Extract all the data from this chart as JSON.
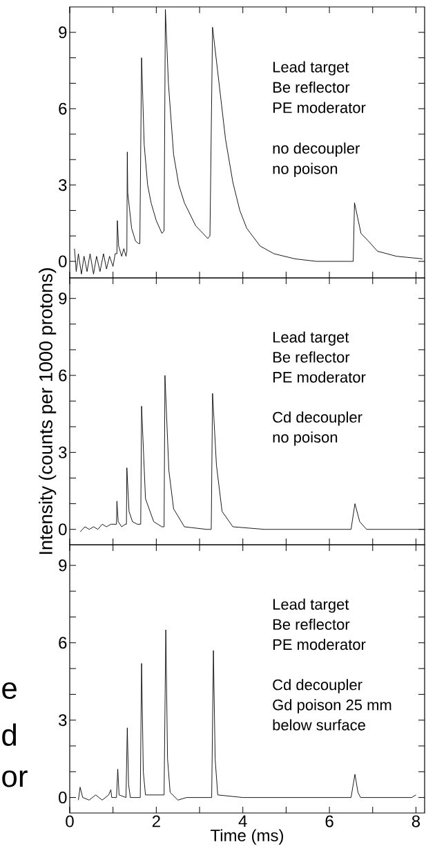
{
  "chart_data": [
    {
      "type": "line",
      "color": "#000000",
      "xlim": [
        0,
        8.2
      ],
      "ylim": [
        -0.65,
        10
      ],
      "tick_labels": "y",
      "xticks": [
        0,
        {
          "value": 1,
          "label": null
        },
        2,
        {
          "value": 3,
          "label": null
        },
        4,
        {
          "value": 5,
          "label": null
        },
        6,
        {
          "value": 7,
          "label": null
        },
        8
      ],
      "yticks": [
        0,
        {
          "value": 1,
          "label": null
        },
        {
          "value": 2,
          "label": null
        },
        3,
        {
          "value": 4,
          "label": null
        },
        {
          "value": 5,
          "label": null
        },
        6,
        {
          "value": 7,
          "label": null
        },
        {
          "value": 8,
          "label": null
        },
        9
      ],
      "annotations": [
        "Lead target",
        "Be reflector",
        "PE moderator",
        "no decoupler",
        "no poison"
      ],
      "x": [
        0.11,
        0.15,
        0.2,
        0.27,
        0.33,
        0.4,
        0.47,
        0.55,
        0.62,
        0.7,
        0.78,
        0.85,
        0.92,
        1.0,
        1.05,
        1.09,
        1.1,
        1.13,
        1.2,
        1.25,
        1.3,
        1.32,
        1.33,
        1.34,
        1.43,
        1.52,
        1.59,
        1.62,
        1.66,
        1.72,
        1.8,
        1.88,
        2.0,
        2.13,
        2.18,
        2.21,
        2.28,
        2.4,
        2.52,
        2.65,
        2.91,
        3.19,
        3.24,
        3.3,
        3.45,
        3.6,
        3.77,
        3.93,
        4.09,
        4.4,
        4.72,
        5.2,
        5.7,
        6.2,
        6.55,
        6.58,
        6.73,
        6.9,
        7.11,
        7.55,
        8.15
      ],
      "values": [
        0.5,
        -0.4,
        0.3,
        -0.5,
        0.2,
        -0.4,
        0.3,
        -0.5,
        0.2,
        -0.4,
        0.3,
        -0.3,
        0.2,
        -0.2,
        0.3,
        0.3,
        1.6,
        0.6,
        0.2,
        0.5,
        0.2,
        0.4,
        4.3,
        2.7,
        1.3,
        0.8,
        0.7,
        0.7,
        8.0,
        4.6,
        3.0,
        2.3,
        1.6,
        1.1,
        1.2,
        9.9,
        7.0,
        4.2,
        3.0,
        2.3,
        1.4,
        0.9,
        1.0,
        9.2,
        7.0,
        4.8,
        3.1,
        2.0,
        1.3,
        0.6,
        0.3,
        0.1,
        0.0,
        0.0,
        0.0,
        2.3,
        1.1,
        0.8,
        0.4,
        0.2,
        0.1
      ]
    },
    {
      "type": "line",
      "color": "#000000",
      "xlim": [
        0,
        8.2
      ],
      "ylim": [
        -0.6,
        9.8
      ],
      "tick_labels": "y",
      "ylabel": "Intensity (counts per 1000 protons)",
      "xticks": [
        0,
        {
          "value": 1,
          "label": null
        },
        2,
        {
          "value": 3,
          "label": null
        },
        4,
        {
          "value": 5,
          "label": null
        },
        6,
        {
          "value": 7,
          "label": null
        },
        8
      ],
      "yticks": [
        0,
        {
          "value": 1,
          "label": null
        },
        {
          "value": 2,
          "label": null
        },
        3,
        {
          "value": 4,
          "label": null
        },
        {
          "value": 5,
          "label": null
        },
        6,
        {
          "value": 7,
          "label": null
        },
        {
          "value": 8,
          "label": null
        },
        9
      ],
      "annotations": [
        "Lead target",
        "Be reflector",
        "PE moderator",
        "Cd decoupler",
        "no poison"
      ],
      "x": [
        0.24,
        0.35,
        0.45,
        0.55,
        0.65,
        0.75,
        0.85,
        0.95,
        1.05,
        1.08,
        1.09,
        1.12,
        1.2,
        1.28,
        1.31,
        1.32,
        1.37,
        1.45,
        1.56,
        1.64,
        1.66,
        1.75,
        1.94,
        2.13,
        2.18,
        2.2,
        2.29,
        2.4,
        2.65,
        3.16,
        3.27,
        3.3,
        3.39,
        3.52,
        3.77,
        4.5,
        6.5,
        6.59,
        6.7,
        6.86,
        8.2
      ],
      "values": [
        -0.1,
        0.1,
        0.0,
        0.1,
        0.0,
        0.2,
        0.1,
        0.2,
        0.2,
        0.2,
        1.1,
        0.3,
        0.1,
        0.2,
        0.2,
        2.4,
        0.7,
        0.3,
        0.2,
        0.2,
        4.8,
        1.2,
        0.3,
        0.1,
        0.1,
        6.0,
        2.3,
        0.8,
        0.1,
        0.0,
        0.0,
        5.3,
        2.5,
        0.7,
        0.1,
        0.0,
        0.0,
        1.0,
        0.3,
        0.0,
        0.0
      ]
    },
    {
      "type": "line",
      "color": "#000000",
      "xlim": [
        0,
        8.2
      ],
      "ylim": [
        -0.6,
        9.8
      ],
      "xlabel": "Time (ms)",
      "xticks": [
        0,
        {
          "value": 1,
          "label": null
        },
        2,
        {
          "value": 3,
          "label": null
        },
        4,
        {
          "value": 5,
          "label": null
        },
        6,
        {
          "value": 7,
          "label": null
        },
        8
      ],
      "yticks": [
        0,
        {
          "value": 1,
          "label": null
        },
        {
          "value": 2,
          "label": null
        },
        3,
        {
          "value": 4,
          "label": null
        },
        {
          "value": 5,
          "label": null
        },
        6,
        {
          "value": 7,
          "label": null
        },
        {
          "value": 8,
          "label": null
        },
        9
      ],
      "annotations": [
        "Lead target",
        "Be reflector",
        "PE moderator",
        "Cd decoupler",
        "Gd poison 25 mm",
        "below surface"
      ],
      "x": [
        0.2,
        0.24,
        0.3,
        0.45,
        0.6,
        0.75,
        0.9,
        0.95,
        0.97,
        1.08,
        1.11,
        1.14,
        1.3,
        1.33,
        1.36,
        1.4,
        1.63,
        1.66,
        1.7,
        1.75,
        2.18,
        2.22,
        2.26,
        2.32,
        2.5,
        2.7,
        3.28,
        3.32,
        3.36,
        3.42,
        4.0,
        6.5,
        6.59,
        6.66,
        6.72,
        7.9,
        8.0
      ],
      "values": [
        -0.1,
        0.4,
        0.0,
        -0.1,
        0.1,
        -0.1,
        0.1,
        0.3,
        0.0,
        0.0,
        1.1,
        0.1,
        0.0,
        2.7,
        0.5,
        0.0,
        0.0,
        5.2,
        1.0,
        0.1,
        0.1,
        6.5,
        1.5,
        0.2,
        -0.1,
        0.0,
        0.0,
        5.7,
        1.5,
        0.1,
        0.0,
        0.0,
        0.9,
        0.2,
        0.0,
        0.0,
        0.1
      ]
    },
    {
      "type": "other",
      "annotations": [
        "e",
        "d",
        "or"
      ]
    }
  ]
}
